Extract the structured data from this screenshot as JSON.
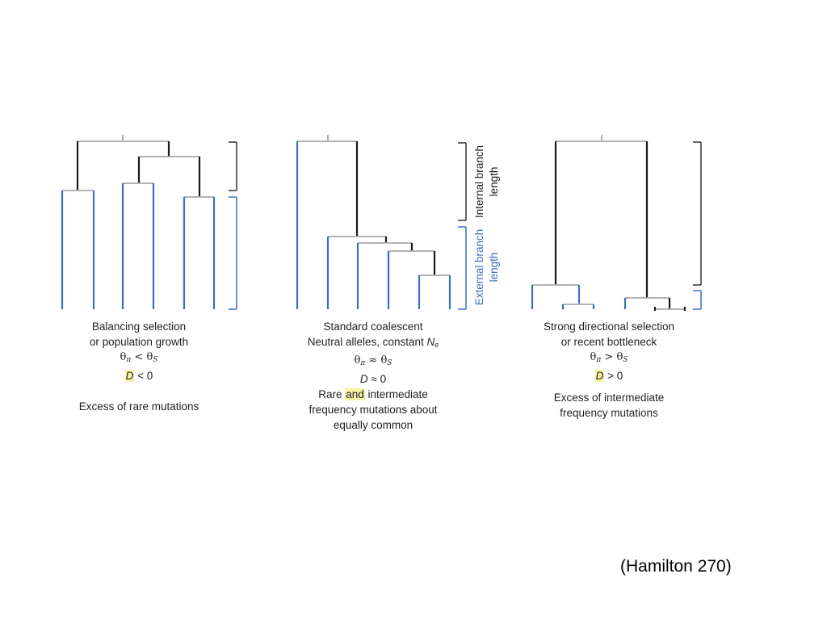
{
  "labels": {
    "internal_branch_line1": "Internal branch",
    "internal_branch_line2": "length",
    "external_branch_line1": "External branch",
    "external_branch_line2": "length"
  },
  "panels": [
    {
      "line1": "Balancing selection",
      "line2": "or population growth",
      "theta_pi": "θ",
      "theta_pi_sub": "π",
      "theta_op": "<",
      "theta_s": "θ",
      "theta_s_sub": "S",
      "d_symbol": "D",
      "d_op": "< 0",
      "note_line1": "Excess of rare mutations"
    },
    {
      "line1": "Standard coalescent",
      "line2a": "Neutral alleles, constant ",
      "line2_ne": "N",
      "line2_ne_sub": "e",
      "theta_pi": "θ",
      "theta_pi_sub": "π",
      "theta_op": "≈",
      "theta_s": "θ",
      "theta_s_sub": "S",
      "d_symbol": "D",
      "d_op": "≈ 0",
      "note_rare": "Rare ",
      "note_and": "and",
      "note_rest": " intermediate",
      "note_line2": "frequency mutations about",
      "note_line3": "equally common"
    },
    {
      "line1": "Strong directional selection",
      "line2": "or recent bottleneck",
      "theta_pi": "θ",
      "theta_pi_sub": "π",
      "theta_op": ">",
      "theta_s": "θ",
      "theta_s_sub": "S",
      "d_symbol": "D",
      "d_op": "> 0",
      "note_line1": "Excess of intermediate",
      "note_line2": "frequency mutations"
    }
  ],
  "citation": "(Hamilton 270)",
  "colors": {
    "internal_branch": "#1a1a1a",
    "external_branch": "#3a6fc4",
    "node_bar": "#a8a8a8",
    "bracket_internal": "#333333",
    "bracket_external": "#3a6fc4",
    "highlight": "#f7f3a6"
  }
}
